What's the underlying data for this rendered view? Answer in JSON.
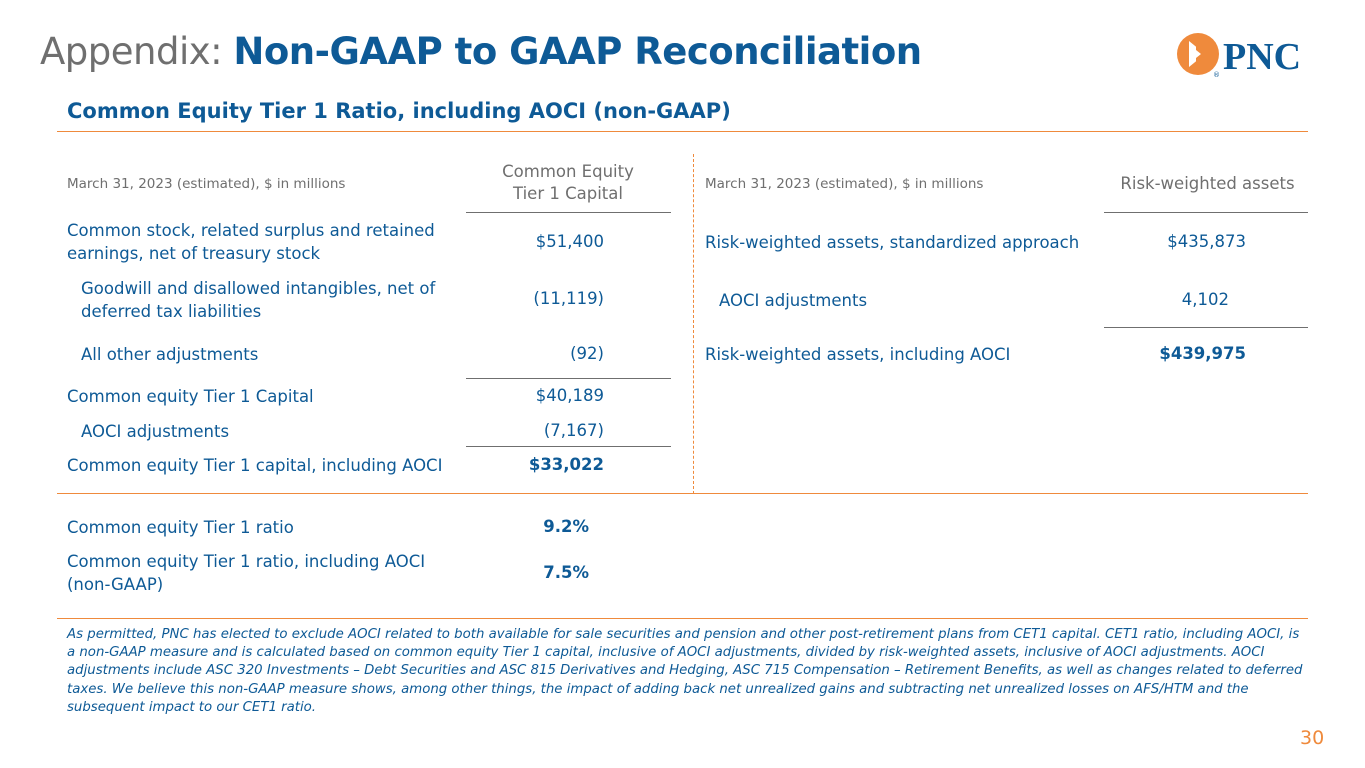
{
  "header": {
    "title_prefix": "Appendix:",
    "title_main": "Non-GAAP to GAAP Reconciliation",
    "logo_text": "PNC"
  },
  "subtitle": "Common Equity Tier 1 Ratio, including AOCI (non-GAAP)",
  "left_table": {
    "header_label": "March 31, 2023 (estimated), $ in millions",
    "column_header_line1": "Common Equity",
    "column_header_line2": "Tier 1 Capital",
    "rows": [
      {
        "label_line1": "Common stock, related surplus and retained",
        "label_line2": "earnings, net of treasury stock",
        "value": "$51,400"
      },
      {
        "label_line1": "Goodwill and disallowed intangibles, net of",
        "label_line2": "deferred tax liabilities",
        "value": "(11,119)"
      },
      {
        "label_line1": "All other adjustments",
        "value": "(92)"
      },
      {
        "label_line1": "Common equity Tier 1 Capital",
        "value": "$40,189"
      },
      {
        "label_line1": "AOCI adjustments",
        "value": "(7,167)"
      },
      {
        "label_line1": "Common equity Tier 1 capital, including AOCI",
        "value": "$33,022"
      }
    ]
  },
  "right_table": {
    "header_label": "March 31, 2023 (estimated), $ in millions",
    "column_header": "Risk-weighted assets",
    "rows": [
      {
        "label": "Risk-weighted assets, standardized approach",
        "value": "$435,873"
      },
      {
        "label": "AOCI adjustments",
        "value": "4,102"
      },
      {
        "label": "Risk-weighted assets, including AOCI",
        "value": "$439,975"
      }
    ]
  },
  "ratios": [
    {
      "label_line1": "Common equity Tier 1 ratio",
      "value": "9.2%"
    },
    {
      "label_line1": "Common equity Tier 1 ratio, including AOCI",
      "label_line2": "(non-GAAP)",
      "value": "7.5%"
    }
  ],
  "footnote": "As permitted, PNC has elected to exclude AOCI related to both available for sale securities and pension and other post-retirement plans from CET1 capital. CET1 ratio, including AOCI, is a non-GAAP measure and is calculated based on common equity Tier 1 capital, inclusive of AOCI adjustments, divided by risk-weighted assets, inclusive of AOCI adjustments. AOCI adjustments include ASC 320 Investments – Debt Securities and ASC 815 Derivatives and Hedging, ASC 715 Compensation – Retirement Benefits, as well as changes related to deferred taxes. We believe this non-GAAP measure shows, among other things, the impact of adding back net unrealized gains and subtracting net unrealized losses on AFS/HTM and the subsequent impact to our CET1 ratio.",
  "page_number": "30",
  "colors": {
    "brand_blue": "#0e5a96",
    "brand_orange": "#ef8a3c",
    "gray": "#6f6f6f"
  }
}
